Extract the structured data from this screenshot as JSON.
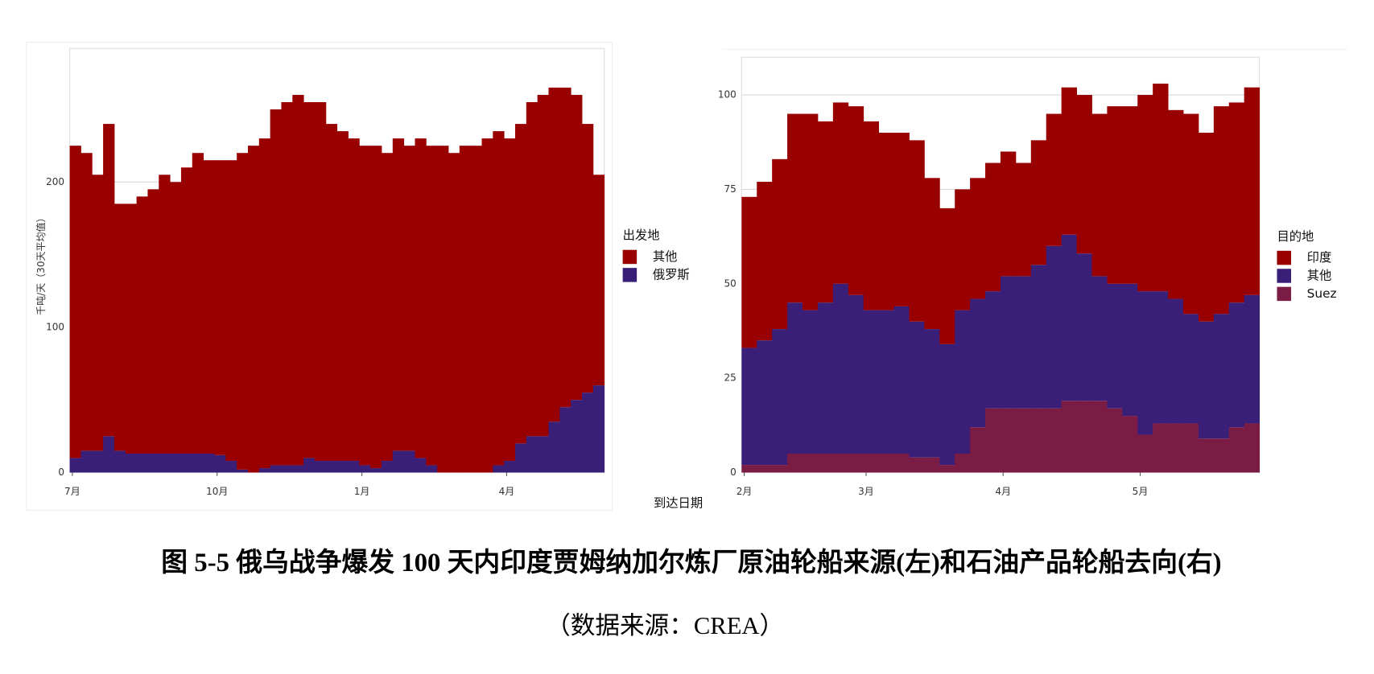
{
  "chart_data": [
    {
      "type": "stacked_bar",
      "ylabel": "千吨/天（30天平均值）",
      "xlabel": "到达日期",
      "legend_title": "出发地",
      "categories": [
        "7月",
        null,
        null,
        null,
        null,
        null,
        null,
        null,
        null,
        null,
        null,
        null,
        null,
        "10月",
        null,
        null,
        null,
        null,
        null,
        null,
        null,
        null,
        null,
        null,
        null,
        null,
        "1月",
        null,
        null,
        null,
        null,
        null,
        null,
        null,
        null,
        null,
        null,
        null,
        null,
        "4月",
        null,
        null,
        null,
        null,
        null,
        null,
        null,
        null
      ],
      "series": [
        {
          "name": "俄罗斯",
          "color": "#3a1f78",
          "values": [
            10,
            15,
            15,
            25,
            15,
            13,
            13,
            13,
            13,
            13,
            13,
            13,
            13,
            12,
            8,
            2,
            0,
            3,
            5,
            5,
            5,
            10,
            8,
            8,
            8,
            8,
            5,
            3,
            8,
            15,
            15,
            10,
            5,
            0,
            0,
            0,
            0,
            0,
            5,
            8,
            20,
            25,
            25,
            35,
            45,
            50,
            55,
            60
          ]
        },
        {
          "name": "其他",
          "color": "#990000",
          "values": [
            215,
            205,
            190,
            215,
            170,
            172,
            177,
            182,
            192,
            187,
            197,
            207,
            202,
            203,
            207,
            218,
            225,
            227,
            245,
            250,
            255,
            245,
            247,
            232,
            227,
            222,
            220,
            222,
            212,
            215,
            210,
            220,
            220,
            225,
            220,
            225,
            225,
            230,
            230,
            222,
            220,
            230,
            235,
            230,
            220,
            210,
            185,
            145
          ]
        }
      ],
      "ylim": [
        0,
        292
      ],
      "yticks": [
        0,
        100,
        200
      ],
      "grid": true
    },
    {
      "type": "stacked_bar",
      "legend_title": "目的地",
      "categories": [
        "2月",
        null,
        null,
        null,
        null,
        null,
        null,
        null,
        "3月",
        null,
        null,
        null,
        null,
        null,
        null,
        null,
        null,
        "4月",
        null,
        null,
        null,
        null,
        null,
        null,
        null,
        null,
        "5月",
        null,
        null,
        null,
        null,
        null,
        null,
        null
      ],
      "series": [
        {
          "name": "Suez",
          "color": "#7b1c45",
          "values": [
            2,
            2,
            2,
            5,
            5,
            5,
            5,
            5,
            5,
            5,
            5,
            4,
            4,
            2,
            5,
            12,
            17,
            17,
            17,
            17,
            17,
            19,
            19,
            19,
            17,
            15,
            10,
            13,
            13,
            13,
            9,
            9,
            12,
            13
          ]
        },
        {
          "name": "其他",
          "color": "#3a1f78",
          "values": [
            31,
            33,
            36,
            40,
            38,
            40,
            45,
            42,
            38,
            38,
            39,
            36,
            34,
            32,
            38,
            34,
            31,
            35,
            35,
            38,
            43,
            44,
            39,
            33,
            33,
            35,
            38,
            35,
            33,
            29,
            31,
            33,
            33,
            34
          ]
        },
        {
          "name": "印度",
          "color": "#990000",
          "values": [
            40,
            42,
            45,
            50,
            52,
            48,
            48,
            50,
            50,
            47,
            46,
            48,
            40,
            36,
            32,
            32,
            34,
            33,
            30,
            33,
            35,
            39,
            42,
            43,
            47,
            47,
            52,
            55,
            50,
            53,
            50,
            55,
            53,
            55
          ]
        }
      ],
      "ylim": [
        0,
        110
      ],
      "yticks": [
        0,
        25,
        50,
        75,
        100
      ],
      "grid": true
    }
  ],
  "caption": "图 5-5  俄乌战争爆发 100 天内印度贾姆纳加尔炼厂原油轮船来源(左)和石油产品轮船去向(右)",
  "source": "（数据来源：CREA）"
}
